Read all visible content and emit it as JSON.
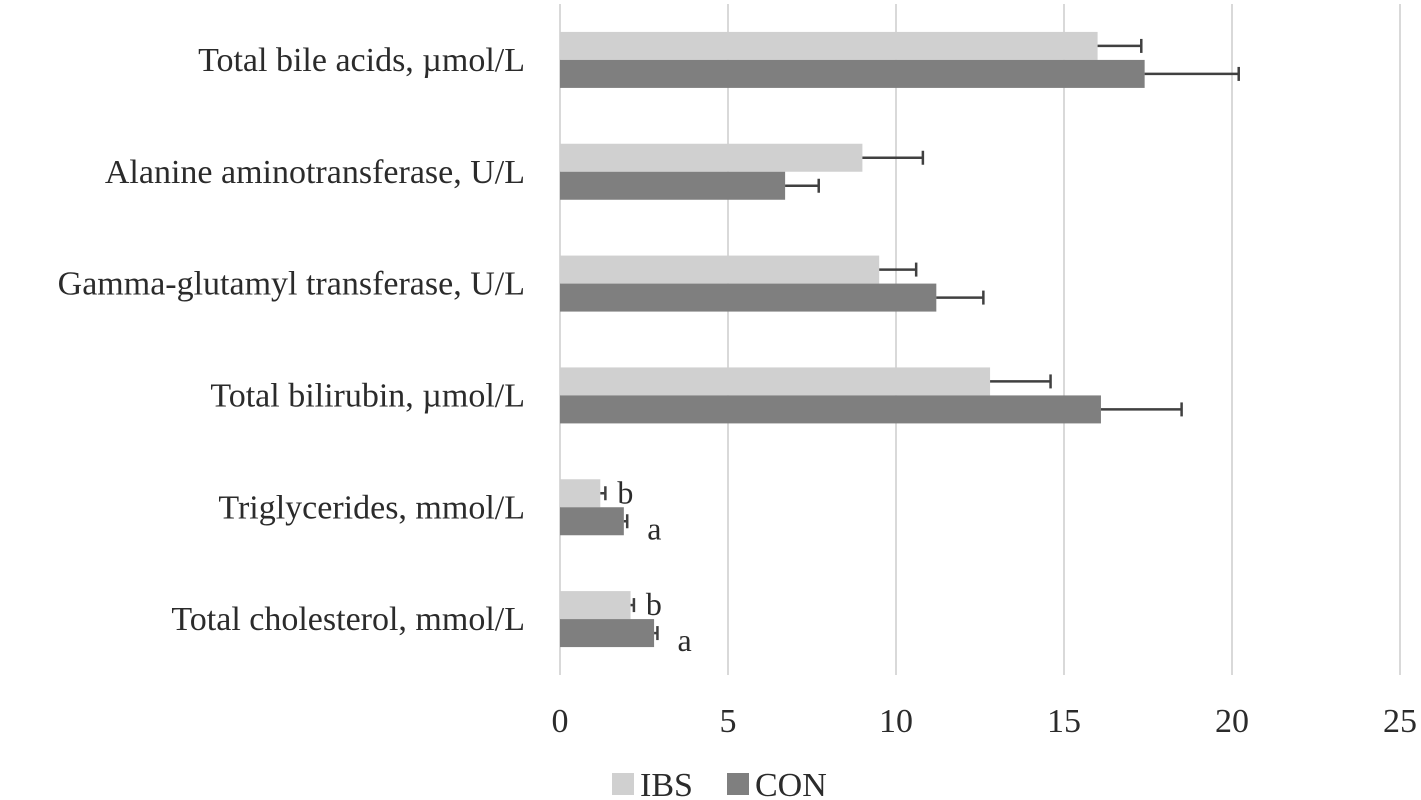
{
  "chart_data": {
    "type": "bar",
    "orientation": "horizontal",
    "title": "",
    "xlabel": "",
    "ylabel": "",
    "categories": [
      "Total bile acids, µmol/L",
      "Alanine aminotransferase, U/L",
      "Gamma-glutamyl transferase, U/L",
      "Total bilirubin, µmol/L",
      "Triglycerides, mmol/L",
      "Total cholesterol, mmol/L"
    ],
    "series": [
      {
        "name": "IBS",
        "color": "#d0d0d0",
        "values": [
          16.0,
          9.0,
          9.5,
          12.8,
          1.2,
          2.1
        ],
        "errors": [
          1.3,
          1.8,
          1.1,
          1.8,
          0.15,
          0.1
        ],
        "labels": [
          "",
          "",
          "",
          "",
          "b",
          "b"
        ]
      },
      {
        "name": "CON",
        "color": "#7f7f7f",
        "values": [
          17.4,
          6.7,
          11.2,
          16.1,
          1.9,
          2.8
        ],
        "errors": [
          2.8,
          1.0,
          1.4,
          2.4,
          0.1,
          0.1
        ],
        "labels": [
          "",
          "",
          "",
          "",
          "a",
          "a"
        ]
      }
    ],
    "xlim": [
      0,
      25
    ],
    "ticks": [
      "0",
      "5",
      "10",
      "15",
      "20",
      "25"
    ],
    "grid": "vertical",
    "legend": "bottom-center"
  }
}
